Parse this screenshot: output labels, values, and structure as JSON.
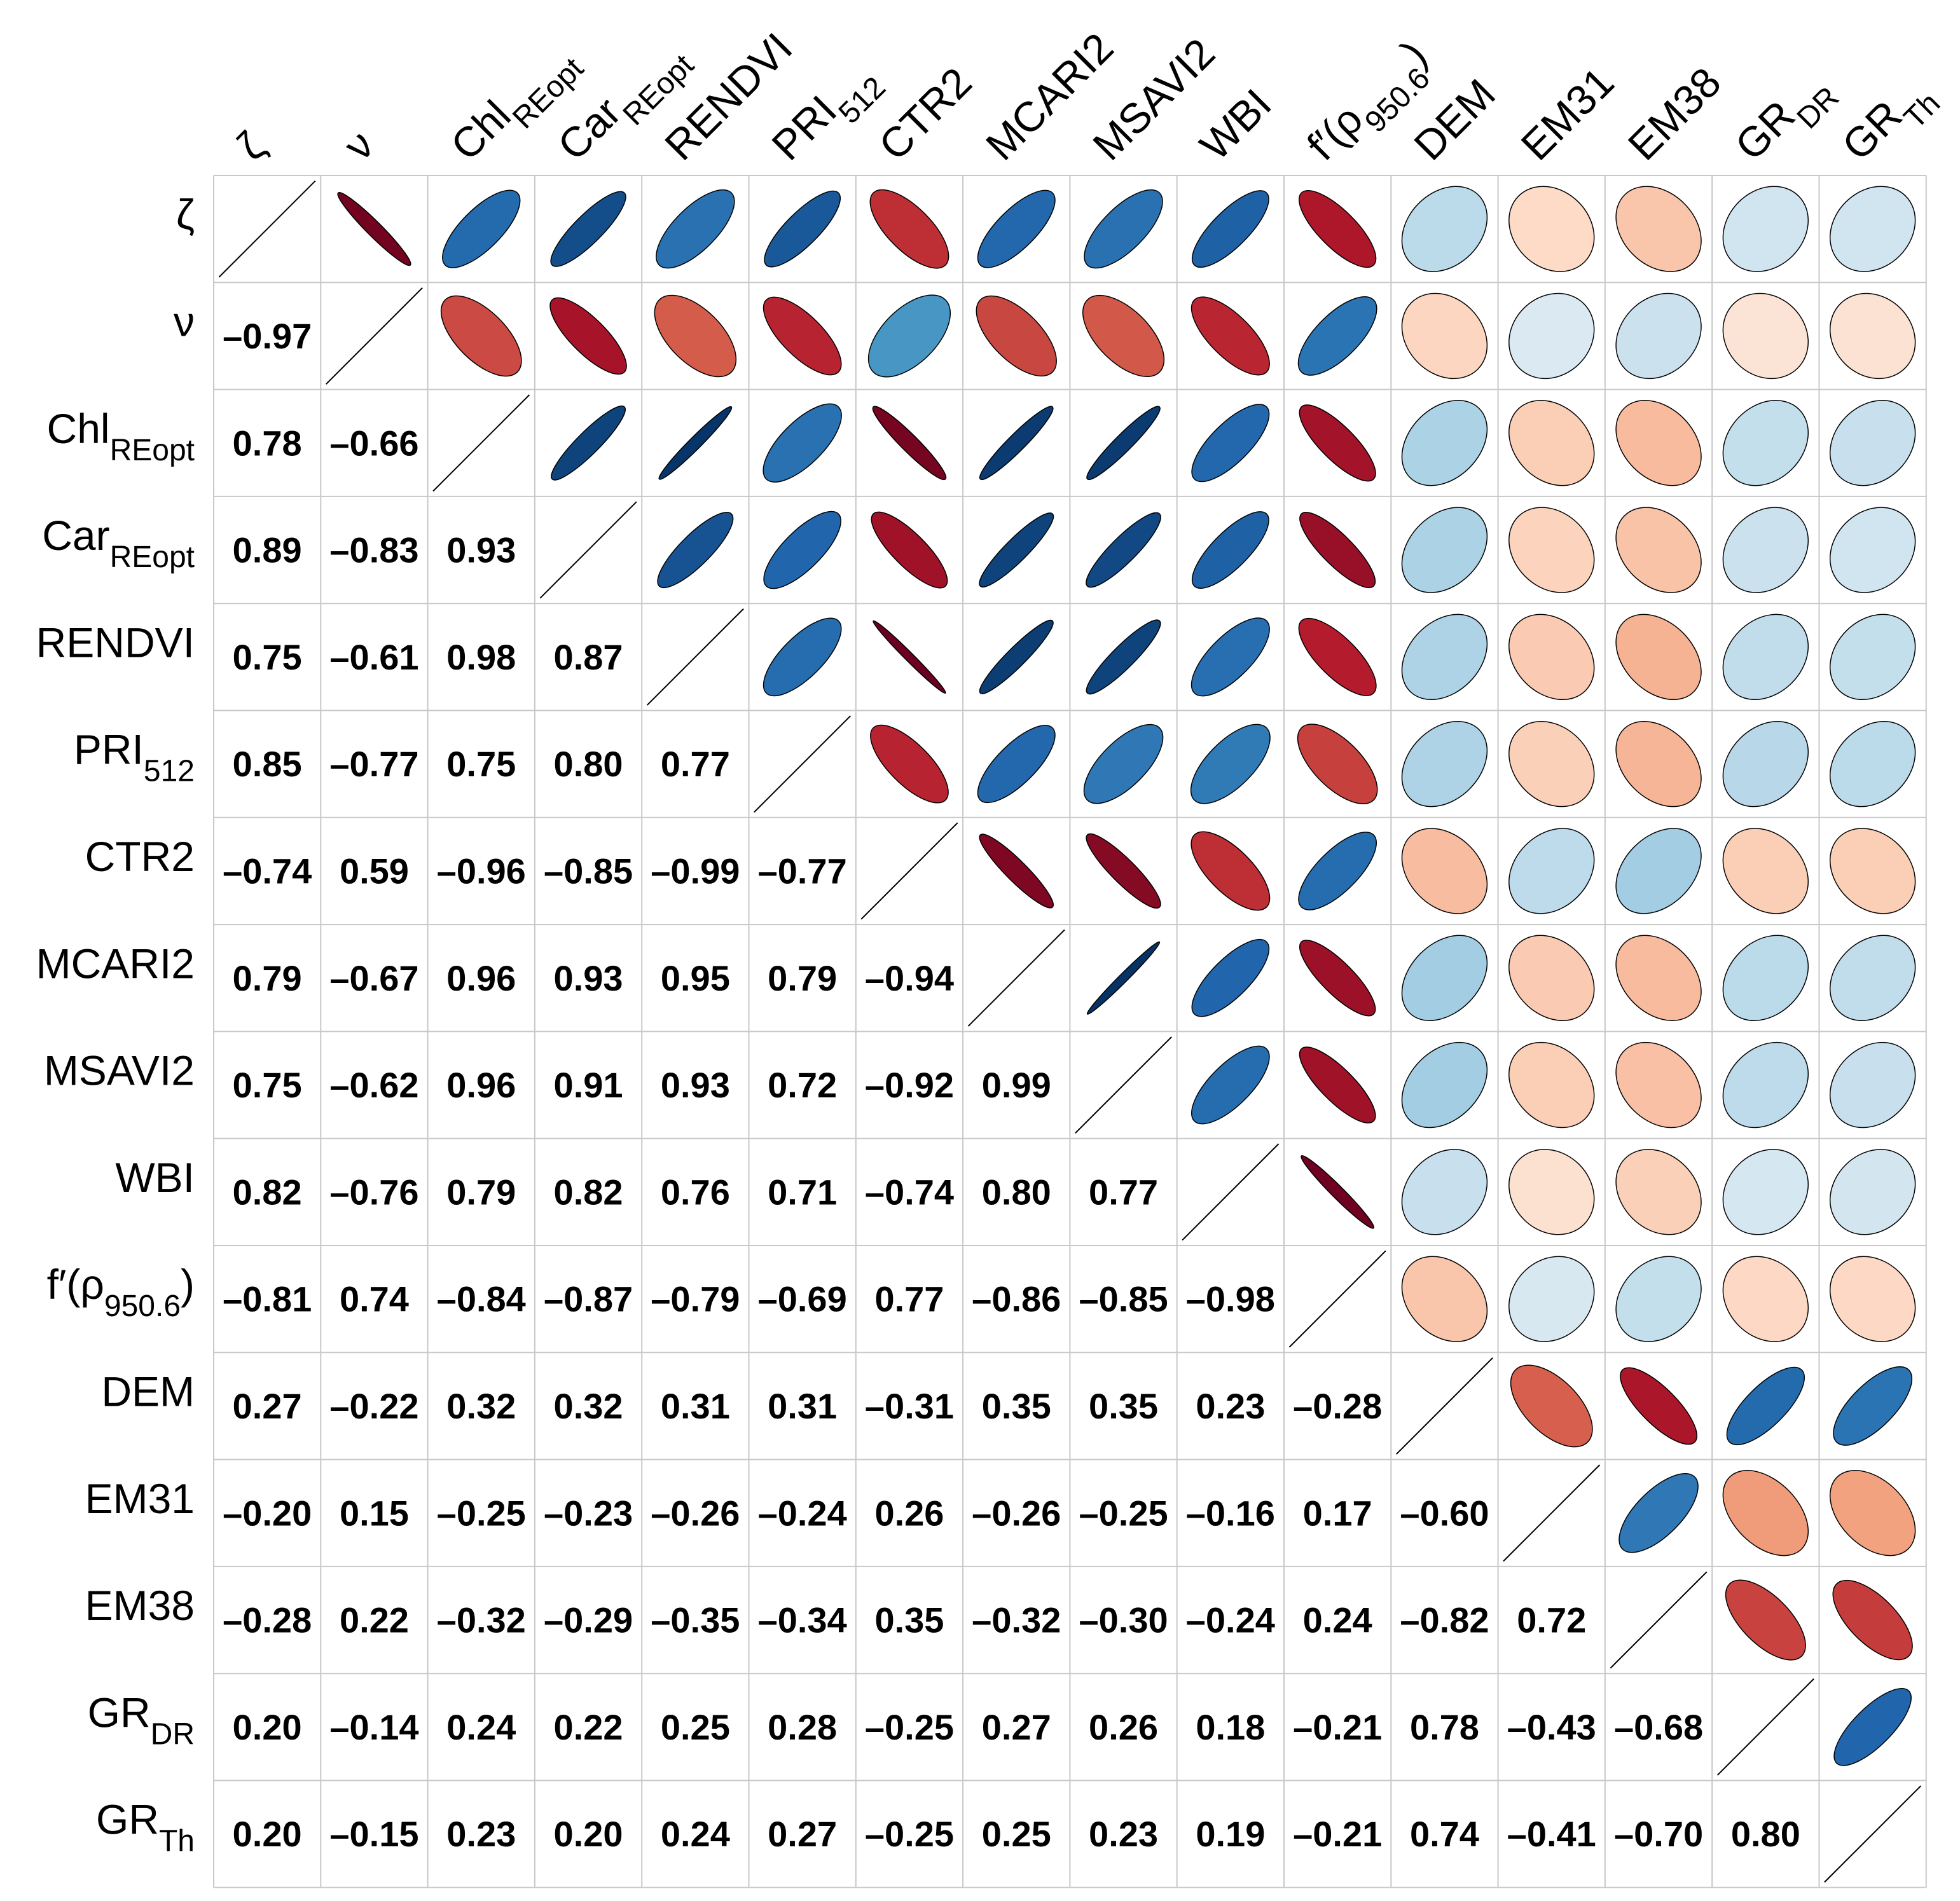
{
  "chart_data": {
    "type": "heatmap",
    "subtype": "correlation-matrix",
    "upper_triangle": "ellipse",
    "lower_triangle": "number",
    "diagonal": "line",
    "variables": [
      {
        "id": "zeta",
        "base": "ζ",
        "sub": "",
        "close": ""
      },
      {
        "id": "nu",
        "base": "ν",
        "sub": "",
        "close": ""
      },
      {
        "id": "chl",
        "base": "Chl",
        "sub": "REopt",
        "close": ""
      },
      {
        "id": "car",
        "base": "Car",
        "sub": "REopt",
        "close": ""
      },
      {
        "id": "rendvi",
        "base": "RENDVI",
        "sub": "",
        "close": ""
      },
      {
        "id": "pri",
        "base": "PRI",
        "sub": "512",
        "close": ""
      },
      {
        "id": "ctr2",
        "base": "CTR2",
        "sub": "",
        "close": ""
      },
      {
        "id": "mcari2",
        "base": "MCARI2",
        "sub": "",
        "close": ""
      },
      {
        "id": "msavi2",
        "base": "MSAVI2",
        "sub": "",
        "close": ""
      },
      {
        "id": "wbi",
        "base": "WBI",
        "sub": "",
        "close": ""
      },
      {
        "id": "fprime",
        "base": "f′(ρ",
        "sub": "950.6",
        "close": ")"
      },
      {
        "id": "dem",
        "base": "DEM",
        "sub": "",
        "close": ""
      },
      {
        "id": "em31",
        "base": "EM31",
        "sub": "",
        "close": ""
      },
      {
        "id": "em38",
        "base": "EM38",
        "sub": "",
        "close": ""
      },
      {
        "id": "grdr",
        "base": "GR",
        "sub": "DR",
        "close": ""
      },
      {
        "id": "grth",
        "base": "GR",
        "sub": "Th",
        "close": ""
      }
    ],
    "lower_values": [
      [],
      [
        -0.97
      ],
      [
        0.78,
        -0.66
      ],
      [
        0.89,
        -0.83,
        0.93
      ],
      [
        0.75,
        -0.61,
        0.98,
        0.87
      ],
      [
        0.85,
        -0.77,
        0.75,
        0.8,
        0.77
      ],
      [
        -0.74,
        0.59,
        -0.96,
        -0.85,
        -0.99,
        -0.77
      ],
      [
        0.79,
        -0.67,
        0.96,
        0.93,
        0.95,
        0.79,
        -0.94
      ],
      [
        0.75,
        -0.62,
        0.96,
        0.91,
        0.93,
        0.72,
        -0.92,
        0.99
      ],
      [
        0.82,
        -0.76,
        0.79,
        0.82,
        0.76,
        0.71,
        -0.74,
        0.8,
        0.77
      ],
      [
        -0.81,
        0.74,
        -0.84,
        -0.87,
        -0.79,
        -0.69,
        0.77,
        -0.86,
        -0.85,
        -0.98
      ],
      [
        0.27,
        -0.22,
        0.32,
        0.32,
        0.31,
        0.31,
        -0.31,
        0.35,
        0.35,
        0.23,
        -0.28
      ],
      [
        -0.2,
        0.15,
        -0.25,
        -0.23,
        -0.26,
        -0.24,
        0.26,
        -0.26,
        -0.25,
        -0.16,
        0.17,
        -0.6
      ],
      [
        -0.28,
        0.22,
        -0.32,
        -0.29,
        -0.35,
        -0.34,
        0.35,
        -0.32,
        -0.3,
        -0.24,
        0.24,
        -0.82,
        0.72
      ],
      [
        0.2,
        -0.14,
        0.24,
        0.22,
        0.25,
        0.28,
        -0.25,
        0.27,
        0.26,
        0.18,
        -0.21,
        0.78,
        -0.43,
        -0.68
      ],
      [
        0.2,
        -0.15,
        0.23,
        0.2,
        0.24,
        0.27,
        -0.25,
        0.25,
        0.23,
        0.19,
        -0.21,
        0.74,
        -0.41,
        -0.7,
        0.8
      ]
    ],
    "value_range": [
      -1,
      1
    ],
    "colors": {
      "negative_strong": "#67001f",
      "negative_mid": "#d6604d",
      "negative_weak": "#fddbc7",
      "neutral": "#f7f7f7",
      "positive_weak": "#d1e5f0",
      "positive_mid": "#4393c3",
      "positive_strong": "#053061",
      "grid": "#c8c8c8"
    }
  }
}
